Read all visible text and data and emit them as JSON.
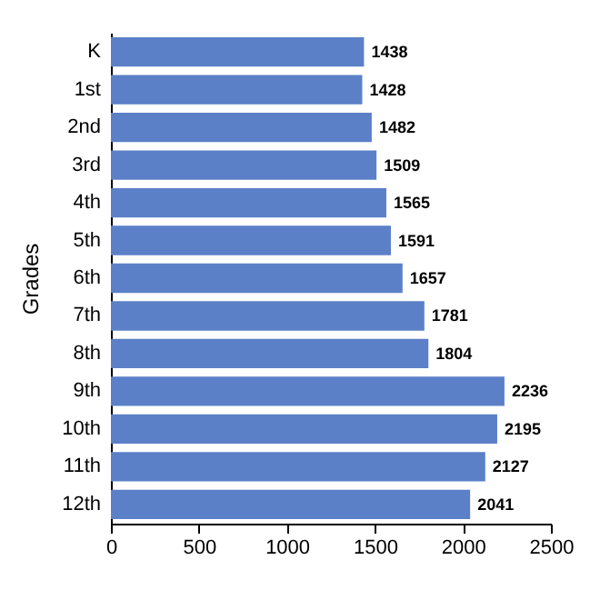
{
  "chart_data": {
    "type": "bar",
    "orientation": "horizontal",
    "ylabel": "Grades",
    "categories": [
      "K",
      "1st",
      "2nd",
      "3rd",
      "4th",
      "5th",
      "6th",
      "7th",
      "8th",
      "9th",
      "10th",
      "11th",
      "12th"
    ],
    "values": [
      1438,
      1428,
      1482,
      1509,
      1565,
      1591,
      1657,
      1781,
      1804,
      2236,
      2195,
      2127,
      2041
    ],
    "color": "#5b80c8",
    "xlim": [
      0,
      2500
    ],
    "xticks": [
      0,
      500,
      1000,
      1500,
      2000,
      2500
    ],
    "data_labels": true
  }
}
